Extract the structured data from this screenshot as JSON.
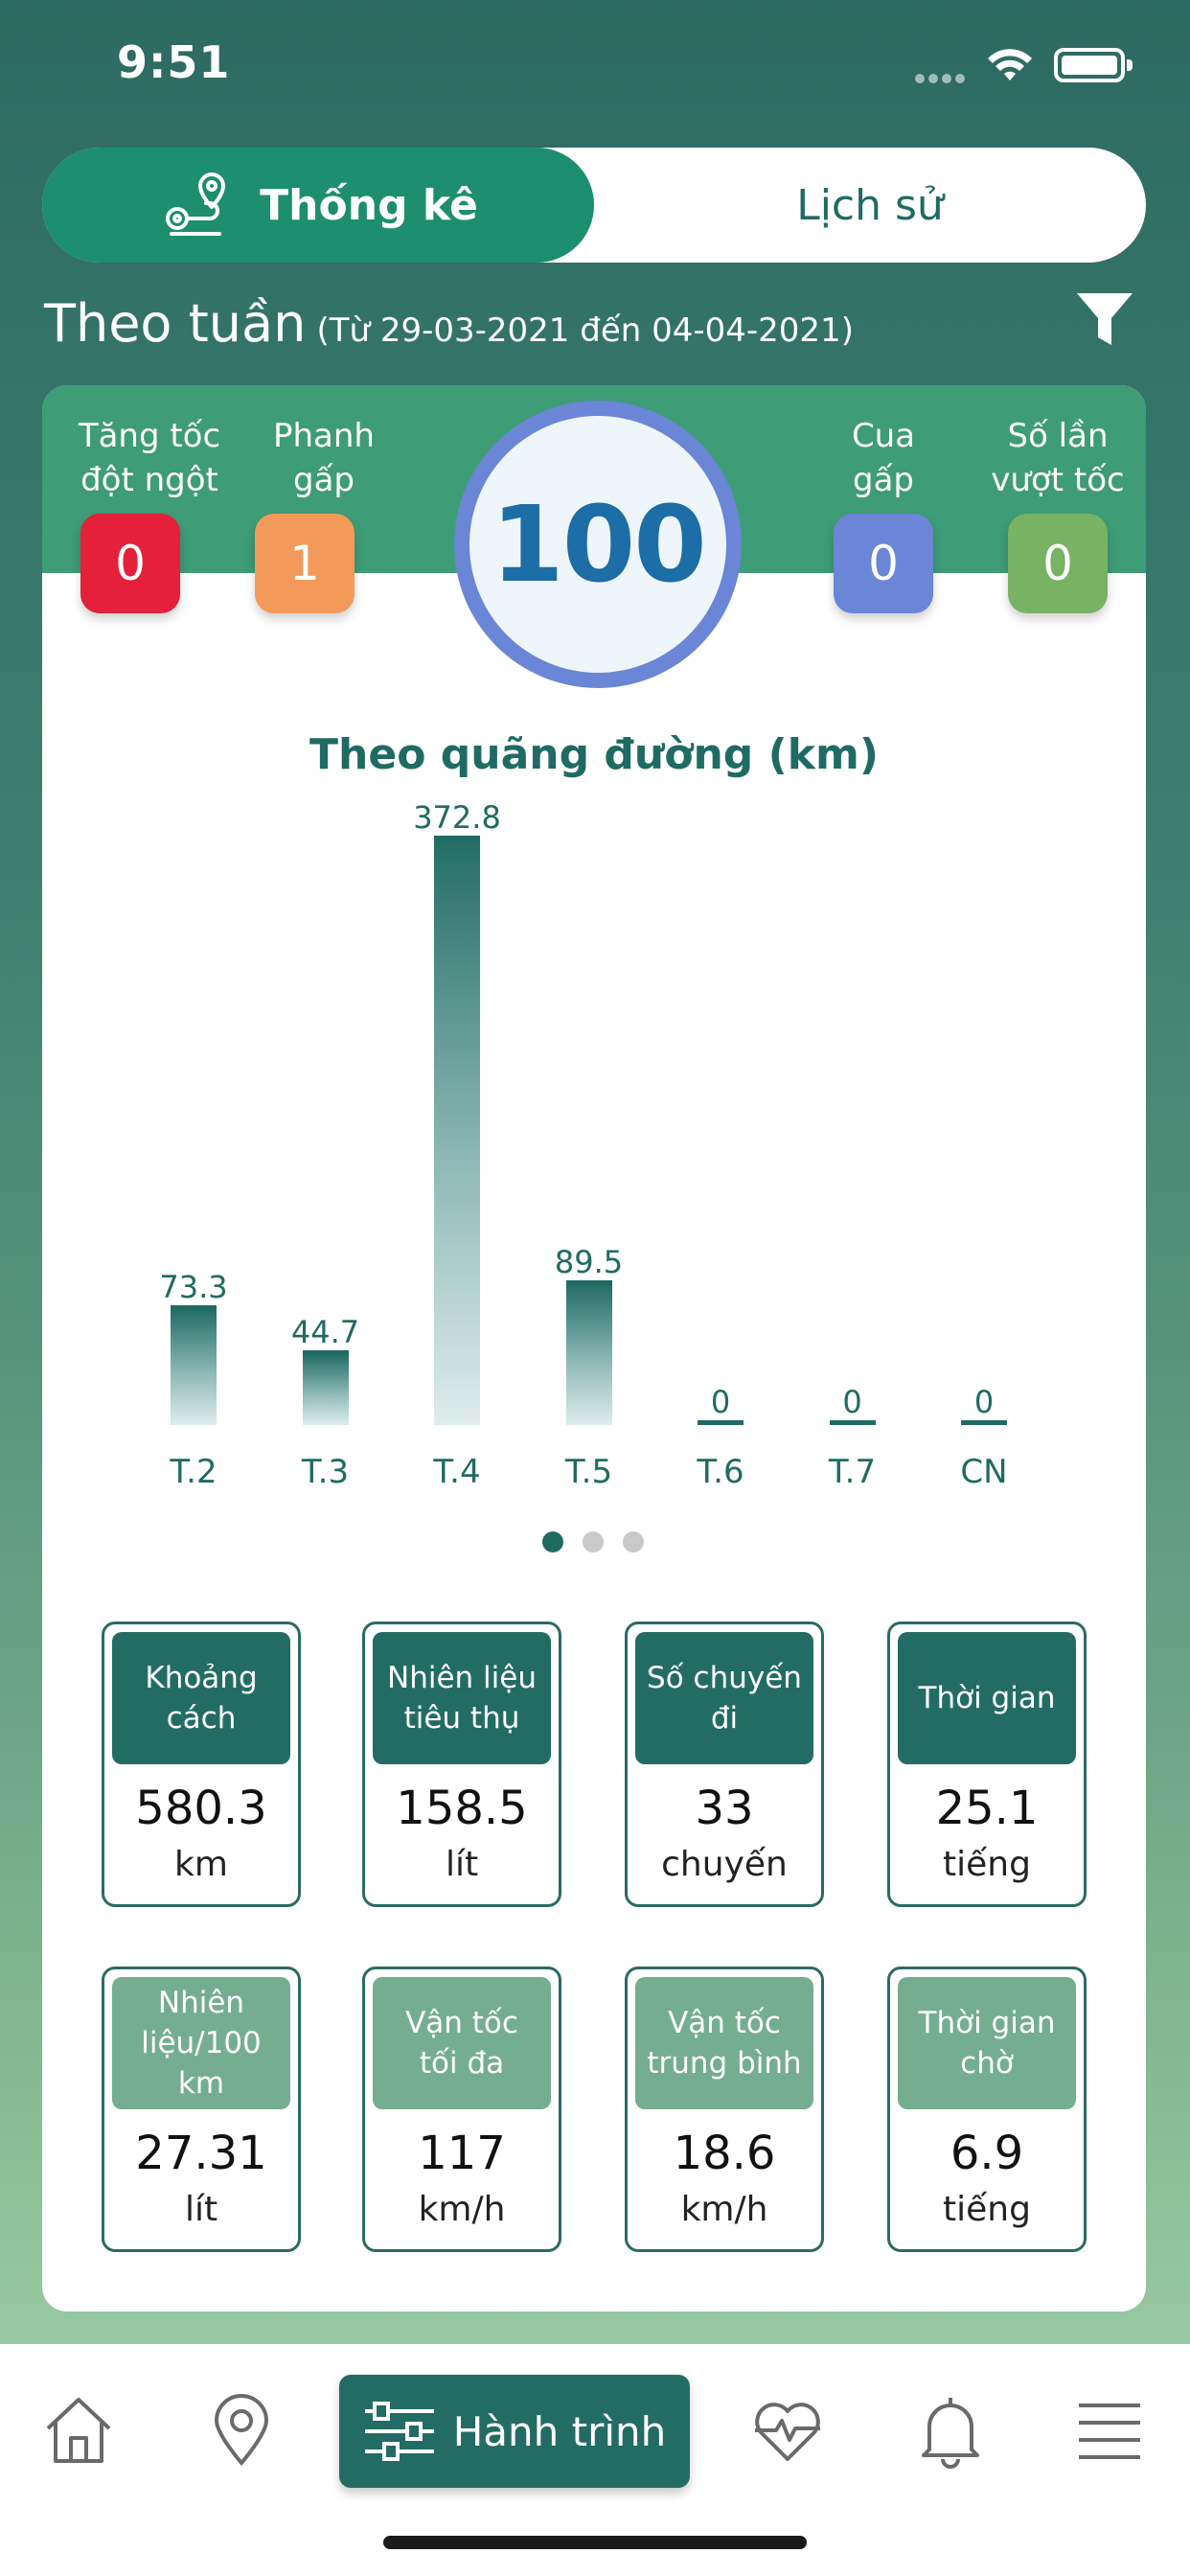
{
  "status_bar": {
    "time": "9:51"
  },
  "tabs": {
    "active": "Thống kê",
    "inactive": "Lịch sử"
  },
  "period": {
    "title": "Theo tuần",
    "range": "(Từ 29-03-2021 đến 04-04-2021)"
  },
  "metrics": [
    {
      "label_line1": "Tăng tốc",
      "label_line2": "đột ngột",
      "value": "0",
      "color": "#e5203a"
    },
    {
      "label_line1": "Phanh",
      "label_line2": "gấp",
      "value": "1",
      "color": "#f39a5b"
    },
    {
      "label_line1": "Cua",
      "label_line2": "gấp",
      "value": "0",
      "color": "#6b86d6"
    },
    {
      "label_line1": "Số lần",
      "label_line2": "vượt tốc",
      "value": "0",
      "color": "#77b363"
    }
  ],
  "score": "100",
  "chart_data": {
    "type": "bar",
    "title": "Theo quãng đường (km)",
    "categories": [
      "T.2",
      "T.3",
      "T.4",
      "T.5",
      "T.6",
      "T.7",
      "CN"
    ],
    "values": [
      73.3,
      44.7,
      372.8,
      89.5,
      0,
      0,
      0
    ],
    "value_labels": [
      "73.3",
      "44.7",
      "372.8",
      "89.5",
      "0",
      "0",
      "0"
    ],
    "ylim": [
      0,
      372.8
    ],
    "grid": false
  },
  "pager": {
    "count": 3,
    "active": 0
  },
  "stats_row1": [
    {
      "line1": "Khoảng",
      "line2": "cách",
      "value": "580.3",
      "unit": "km"
    },
    {
      "line1": "Nhiên liệu",
      "line2": "tiêu thụ",
      "value": "158.5",
      "unit": "lít"
    },
    {
      "line1": "Số chuyến",
      "line2": "đi",
      "value": "33",
      "unit": "chuyến"
    },
    {
      "line1": "Thời gian",
      "line2": "",
      "value": "25.1",
      "unit": "tiếng"
    }
  ],
  "stats_row2": [
    {
      "line1": "Nhiên",
      "line2": "liệu/100",
      "line3": "km",
      "value": "27.31",
      "unit": "lít"
    },
    {
      "line1": "Vận tốc",
      "line2": "tối đa",
      "line3": "",
      "value": "117",
      "unit": "km/h"
    },
    {
      "line1": "Vận tốc",
      "line2": "trung bình",
      "line3": "",
      "value": "18.6",
      "unit": "km/h"
    },
    {
      "line1": "Thời gian",
      "line2": "chờ",
      "line3": "",
      "value": "6.9",
      "unit": "tiếng"
    }
  ],
  "bottom_nav": {
    "active_label": "Hành trình",
    "icons": [
      "home-icon",
      "location-pin-icon",
      "sliders-icon",
      "heart-pulse-icon",
      "bell-icon",
      "menu-icon"
    ]
  },
  "colors": {
    "primary": "#236c64",
    "accent": "#1d8e6e",
    "header_band": "#3e9c77"
  }
}
